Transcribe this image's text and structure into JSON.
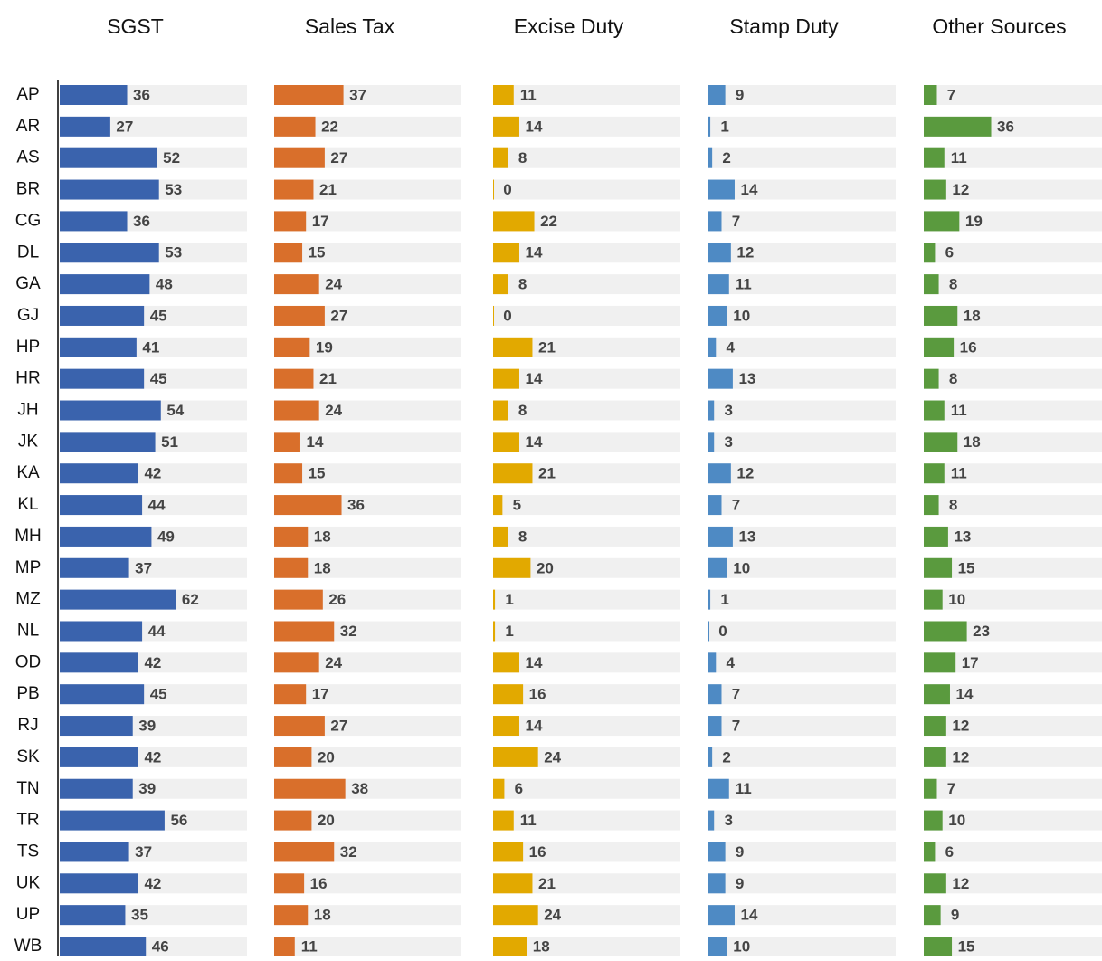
{
  "chart_data": {
    "type": "bar",
    "orientation": "horizontal",
    "xlim": [
      0,
      100
    ],
    "background_bars": true,
    "categories": [
      "AP",
      "AR",
      "AS",
      "BR",
      "CG",
      "DL",
      "GA",
      "GJ",
      "HP",
      "HR",
      "JH",
      "JK",
      "KA",
      "KL",
      "MH",
      "MP",
      "MZ",
      "NL",
      "OD",
      "PB",
      "RJ",
      "SK",
      "TN",
      "TR",
      "TS",
      "UK",
      "UP",
      "WB"
    ],
    "series": [
      {
        "name": "SGST",
        "color": "#3a63ad",
        "values": [
          36,
          27,
          52,
          53,
          36,
          53,
          48,
          45,
          41,
          45,
          54,
          51,
          42,
          44,
          49,
          37,
          62,
          44,
          42,
          45,
          39,
          42,
          39,
          56,
          37,
          42,
          35,
          46
        ]
      },
      {
        "name": "Sales Tax",
        "color": "#d96f2b",
        "values": [
          37,
          22,
          27,
          21,
          17,
          15,
          24,
          27,
          19,
          21,
          24,
          14,
          15,
          36,
          18,
          18,
          26,
          32,
          24,
          17,
          27,
          20,
          38,
          20,
          32,
          16,
          18,
          11
        ]
      },
      {
        "name": "Excise Duty",
        "color": "#e2a900",
        "values": [
          11,
          14,
          8,
          0,
          22,
          14,
          8,
          0,
          21,
          14,
          8,
          14,
          21,
          5,
          8,
          20,
          1,
          1,
          14,
          16,
          14,
          24,
          6,
          11,
          16,
          21,
          24,
          18
        ]
      },
      {
        "name": "Stamp Duty",
        "color": "#4e8ac4",
        "values": [
          9,
          1,
          2,
          14,
          7,
          12,
          11,
          10,
          4,
          13,
          3,
          3,
          12,
          7,
          13,
          10,
          1,
          0,
          4,
          7,
          7,
          2,
          11,
          3,
          9,
          9,
          14,
          10
        ]
      },
      {
        "name": "Other Sources",
        "color": "#5a9a3e",
        "values": [
          7,
          36,
          11,
          12,
          19,
          6,
          8,
          18,
          16,
          8,
          11,
          18,
          11,
          8,
          13,
          15,
          10,
          23,
          17,
          14,
          12,
          12,
          7,
          10,
          6,
          12,
          9,
          15
        ]
      }
    ]
  }
}
